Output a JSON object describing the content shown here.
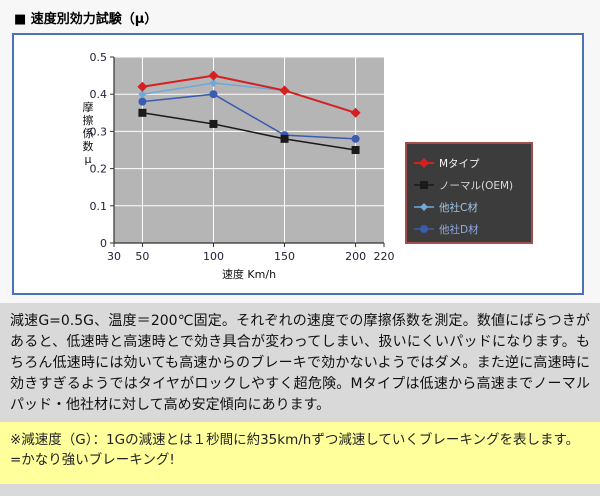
{
  "page": {
    "header": "■ 速度別効力試験（μ）",
    "description": "減速G=0.5G、温度＝200℃固定。それぞれの速度での摩擦係数を測定。数値にばらつきがあると、低速時と高速時とで効き具合が変わってしまい、扱いにくいパッドになります。もちろん低速時には効いても高速からのブレーキで効かないようではダメ。また逆に高速時に効きすぎるようではタイヤがロックしやすく超危険。Mタイプは低速から高速までノーマルパッド・他社材に対して高め安定傾向にあります。",
    "note": "※減速度（G）：1Gの減速とは１秒間に約35km/hずつ減速していくブレーキングを表します。=かなり強いブレーキング!"
  },
  "chart_data": {
    "type": "line",
    "title": "",
    "xlabel": "速度 Km/h",
    "ylabel": "摩擦係数μ",
    "xlim": [
      30,
      220
    ],
    "ylim": [
      0,
      0.5
    ],
    "x_ticks": [
      30,
      50,
      100,
      150,
      200,
      220
    ],
    "y_ticks": [
      0,
      0.1,
      0.2,
      0.3,
      0.4,
      0.5
    ],
    "grid": true,
    "legend_position": "right",
    "x": [
      50,
      100,
      150,
      200
    ],
    "series": [
      {
        "name": "Mタイプ",
        "color": "#d42020",
        "legend_text": "#f5f5f5",
        "marker": "diamond",
        "marker_size": 5,
        "line_width": 2,
        "values": [
          0.42,
          0.45,
          0.41,
          0.35
        ]
      },
      {
        "name": "ノーマル(OEM)",
        "color": "#1a1a1a",
        "legend_text": "#d9d9d9",
        "marker": "square",
        "marker_size": 4,
        "line_width": 1.5,
        "values": [
          0.35,
          0.32,
          0.28,
          0.25
        ]
      },
      {
        "name": "他社C材",
        "color": "#6fa8dc",
        "legend_text": "#9fc5e8",
        "marker": "diamond",
        "marker_size": 4,
        "line_width": 1.5,
        "values": [
          0.4,
          0.43,
          0.41,
          0.35
        ]
      },
      {
        "name": "他社D材",
        "color": "#3a5bb0",
        "legend_text": "#8fa8e0",
        "marker": "circle",
        "marker_size": 4,
        "line_width": 1.5,
        "values": [
          0.38,
          0.4,
          0.29,
          0.28
        ]
      }
    ],
    "style": {
      "plot_bg": "#b5b5b5",
      "grid_color": "#ffffff",
      "axis_color": "#333333",
      "tick_label_color": "#22223a",
      "legend_bg": "#3c3c3c",
      "legend_border": "#a34d4d"
    }
  }
}
